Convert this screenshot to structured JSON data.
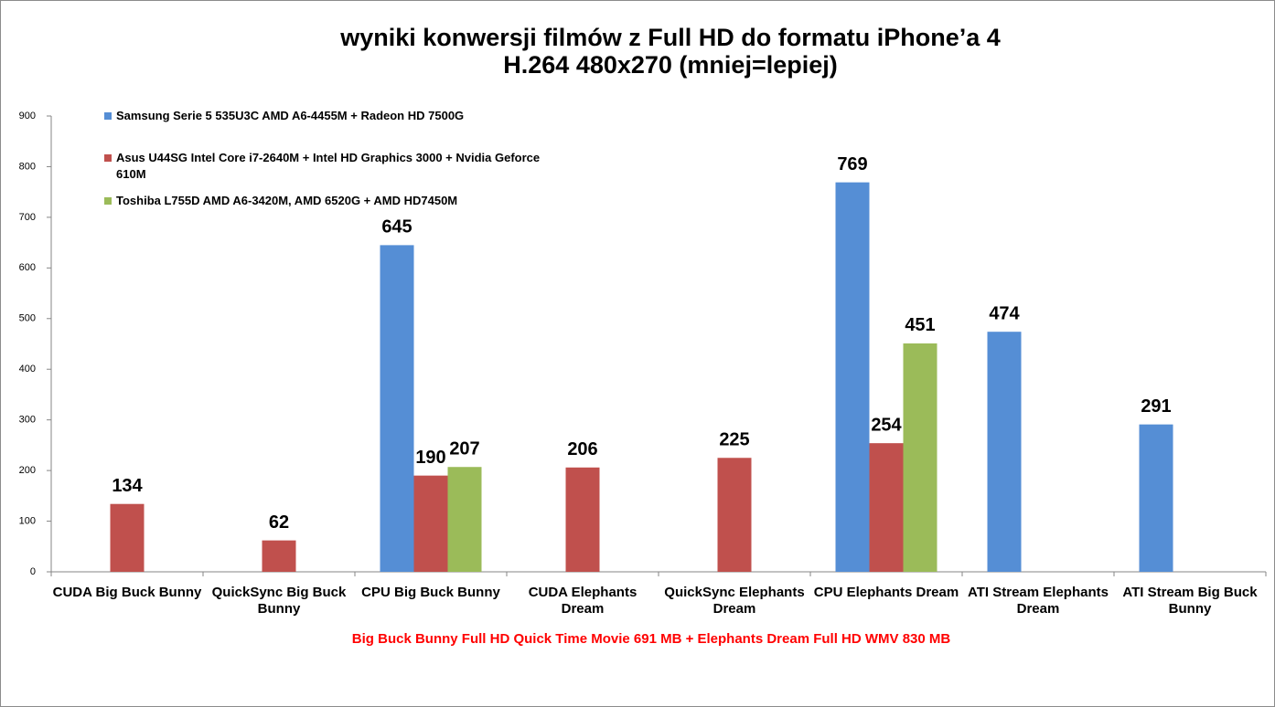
{
  "chart_data": {
    "type": "bar",
    "title": "wyniki konwersji filmów z Full HD do formatu iPhone’a 4",
    "subtitle": "H.264 480x270 (mniej=lepiej)",
    "x_label": "Big Buck Bunny Full HD Quick Time Movie 691 MB + Elephants Dream Full HD WMV 830 MB",
    "categories": [
      "CUDA Big Buck Bunny",
      "QuickSync Big Buck Bunny",
      "CPU Big Buck Bunny",
      "CUDA Elephants Dream",
      "QuickSync Elephants Dream",
      "CPU Elephants Dream",
      "ATI Stream Elephants Dream",
      "ATI Stream Big Buck Bunny"
    ],
    "series": [
      {
        "name": "Samsung Serie 5 535U3C AMD A6-4455M + Radeon HD 7500G",
        "color": "#558ed5",
        "values": [
          null,
          null,
          645,
          null,
          null,
          769,
          474,
          291
        ]
      },
      {
        "name": "Asus U44SG Intel Core i7-2640M + Intel HD Graphics 3000 + Nvidia Geforce 610M",
        "color": "#c0504d",
        "values": [
          134,
          62,
          190,
          206,
          225,
          254,
          null,
          null
        ]
      },
      {
        "name": "Toshiba L755D AMD A6-3420M, AMD 6520G + AMD HD7450M",
        "color": "#9bbb59",
        "values": [
          null,
          null,
          207,
          null,
          null,
          451,
          null,
          null
        ]
      }
    ],
    "ylim": [
      0,
      900
    ],
    "yticks": [
      0,
      100,
      200,
      300,
      400,
      500,
      600,
      700,
      800,
      900
    ],
    "legend": "top-left",
    "grid": false
  }
}
